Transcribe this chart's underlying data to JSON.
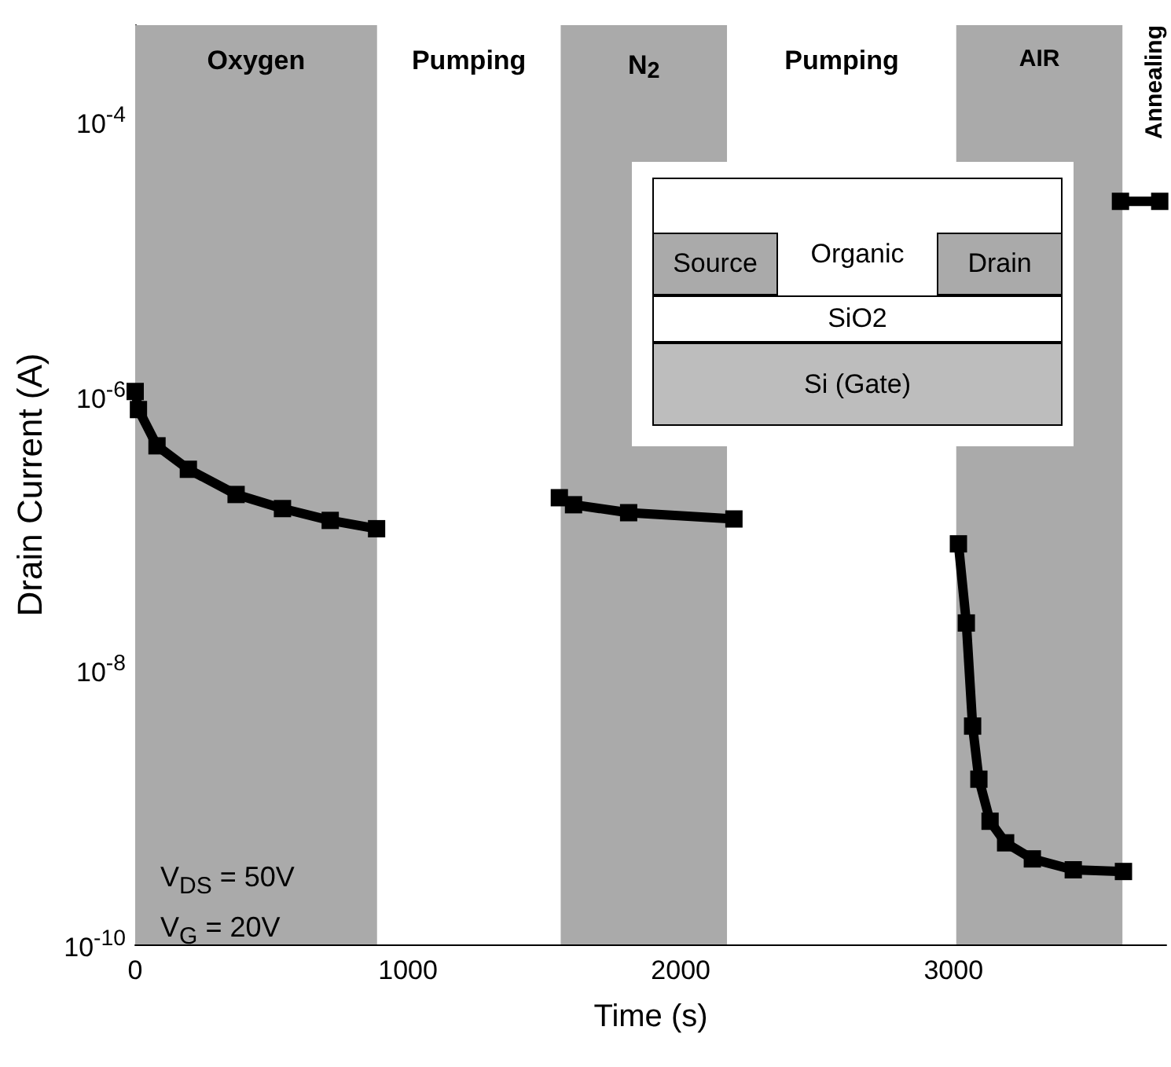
{
  "chart_data": {
    "type": "line",
    "xlabel": "Time (s)",
    "ylabel": "Drain Current (A)",
    "xlim": [
      0,
      3780
    ],
    "xticks": [
      0,
      1000,
      2000,
      3000
    ],
    "ylim": [
      1e-10,
      0.0005
    ],
    "log": true,
    "yticks": [
      {
        "value": 1e-10,
        "label": "10$^{-10}$"
      },
      {
        "value": 1e-08,
        "label": "10$^{-8}$"
      },
      {
        "value": 1e-06,
        "label": "10$^{-6}$"
      },
      {
        "value": 0.0001,
        "label": "10$^{-4}$"
      }
    ],
    "grid": false,
    "marker": "square",
    "line_style": "solid",
    "series": [
      {
        "color": "#000000",
        "x": [
          0,
          12,
          80,
          195,
          370,
          540,
          715,
          885
        ],
        "values": [
          1.07e-06,
          7.9e-07,
          4.3e-07,
          2.9e-07,
          1.9e-07,
          1.5e-07,
          1.23e-07,
          1.07e-07
        ]
      },
      {
        "color": "#000000",
        "x": [
          1555,
          1607,
          1809,
          2195
        ],
        "values": [
          1.8e-07,
          1.6e-07,
          1.4e-07,
          1.26e-07
        ]
      },
      {
        "color": "#000000",
        "x": [
          3018,
          3047,
          3070,
          3093,
          3134,
          3191,
          3289,
          3439,
          3623
        ],
        "values": [
          8.3e-08,
          2.2e-08,
          3.9e-09,
          1.6e-09,
          7.9e-10,
          5.5e-10,
          4.2e-10,
          3.5e-10,
          3.4e-10
        ]
      },
      {
        "color": "#000000",
        "x": [
          3612,
          3756
        ],
        "values": [
          2.6e-05,
          2.6e-05
        ]
      }
    ],
    "bands": [
      {
        "axis": "x",
        "from": 0,
        "to": 887,
        "label": "Oxygen",
        "color": "#aaaaaa"
      },
      {
        "axis": "x",
        "from": 887,
        "to": 1560,
        "label": "Pumping",
        "color": "#ffffff"
      },
      {
        "axis": "x",
        "from": 1560,
        "to": 2170,
        "label": "N$_{2}$",
        "color": "#aaaaaa"
      },
      {
        "axis": "x",
        "from": 2170,
        "to": 3010,
        "label": "Pumping",
        "color": "#ffffff"
      },
      {
        "axis": "x",
        "from": 3010,
        "to": 3620,
        "label": "AIR",
        "color": "#aaaaaa"
      },
      {
        "axis": "x",
        "from": 3620,
        "to": 3780,
        "label": "Annealing",
        "color": "#ffffff"
      }
    ],
    "annotations": [
      "V$_{DS}$  = 50V",
      "V$_{G}$ = 20V",
      "Source",
      "Organic",
      "Drain",
      "SiO2",
      "Si (Gate)"
    ]
  }
}
